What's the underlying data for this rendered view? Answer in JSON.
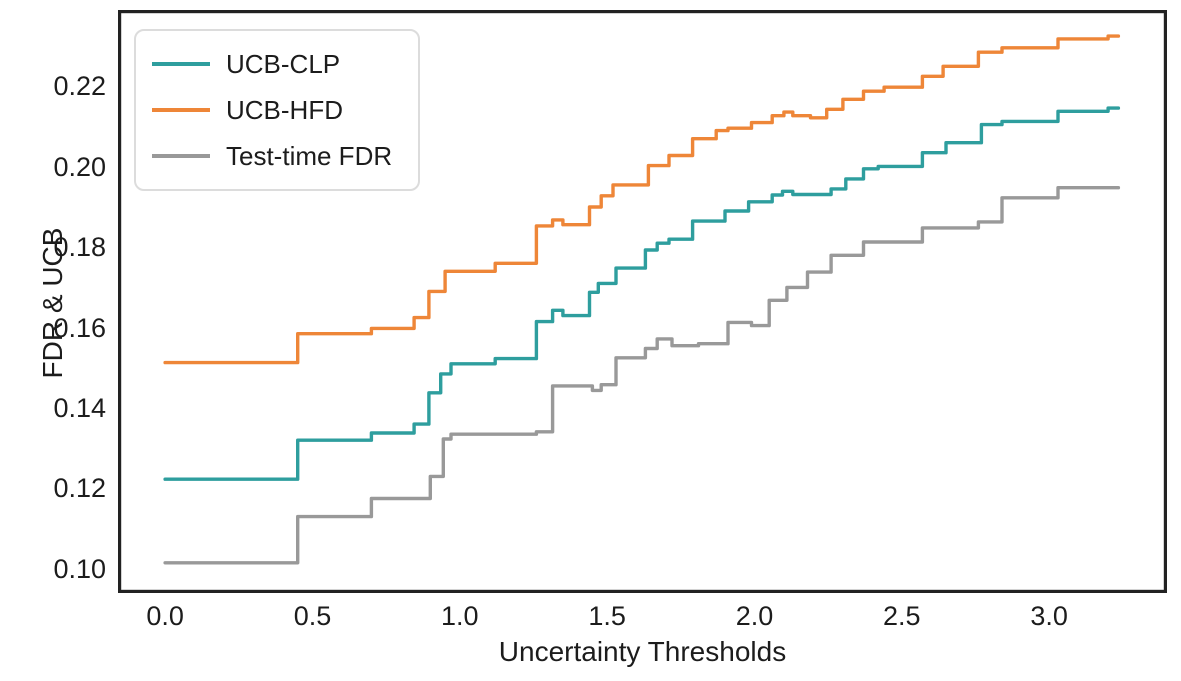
{
  "figure": {
    "background": "#ffffff",
    "text_color": "#1c1c1c",
    "axes_edge_color": "#222222"
  },
  "chart_data": {
    "type": "line",
    "subtype": "step-post",
    "title": "",
    "xlabel": "Uncertainty Thresholds",
    "ylabel": "FDR & UCB",
    "xlim": [
      -0.16,
      3.4
    ],
    "ylim": [
      0.094,
      0.239
    ],
    "grid": false,
    "x_ticks": [
      0.0,
      0.5,
      1.0,
      1.5,
      2.0,
      2.5,
      3.0
    ],
    "x_tick_labels": [
      "0.0",
      "0.5",
      "1.0",
      "1.5",
      "2.0",
      "2.5",
      "3.0"
    ],
    "y_ticks": [
      0.1,
      0.12,
      0.14,
      0.16,
      0.18,
      0.2,
      0.22
    ],
    "y_tick_labels": [
      "0.10",
      "0.12",
      "0.14",
      "0.16",
      "0.18",
      "0.20",
      "0.22"
    ],
    "legend": {
      "position": "upper-left",
      "entries": [
        "UCB-CLP",
        "UCB-HFD",
        "Test-time FDR"
      ]
    },
    "series": [
      {
        "name": "UCB-CLP",
        "color": "#2E9E9E",
        "points": [
          [
            0.0,
            0.1223
          ],
          [
            0.45,
            0.132
          ],
          [
            0.7,
            0.1338
          ],
          [
            0.845,
            0.136
          ],
          [
            0.895,
            0.1438
          ],
          [
            0.935,
            0.1485
          ],
          [
            0.97,
            0.151
          ],
          [
            1.12,
            0.1523
          ],
          [
            1.26,
            0.1615
          ],
          [
            1.315,
            0.1643
          ],
          [
            1.35,
            0.163
          ],
          [
            1.44,
            0.1688
          ],
          [
            1.47,
            0.171
          ],
          [
            1.53,
            0.1748
          ],
          [
            1.63,
            0.1793
          ],
          [
            1.67,
            0.181
          ],
          [
            1.71,
            0.182
          ],
          [
            1.79,
            0.1865
          ],
          [
            1.9,
            0.189
          ],
          [
            1.98,
            0.1913
          ],
          [
            2.06,
            0.193
          ],
          [
            2.095,
            0.1939
          ],
          [
            2.13,
            0.1931
          ],
          [
            2.26,
            0.1945
          ],
          [
            2.31,
            0.197
          ],
          [
            2.37,
            0.1995
          ],
          [
            2.42,
            0.2001
          ],
          [
            2.57,
            0.2035
          ],
          [
            2.65,
            0.206
          ],
          [
            2.77,
            0.2105
          ],
          [
            2.84,
            0.2113
          ],
          [
            3.03,
            0.2138
          ],
          [
            3.2,
            0.2146
          ],
          [
            3.235,
            0.2146
          ]
        ]
      },
      {
        "name": "UCB-HFD",
        "color": "#EE8638",
        "points": [
          [
            0.0,
            0.1513
          ],
          [
            0.45,
            0.1585
          ],
          [
            0.7,
            0.1598
          ],
          [
            0.845,
            0.1625
          ],
          [
            0.895,
            0.169
          ],
          [
            0.95,
            0.174
          ],
          [
            1.12,
            0.176
          ],
          [
            1.26,
            0.1853
          ],
          [
            1.315,
            0.1868
          ],
          [
            1.35,
            0.1856
          ],
          [
            1.44,
            0.19
          ],
          [
            1.48,
            0.1928
          ],
          [
            1.52,
            0.1955
          ],
          [
            1.64,
            0.2003
          ],
          [
            1.71,
            0.2028
          ],
          [
            1.79,
            0.207
          ],
          [
            1.87,
            0.209
          ],
          [
            1.91,
            0.2096
          ],
          [
            1.99,
            0.211
          ],
          [
            2.06,
            0.2127
          ],
          [
            2.1,
            0.2136
          ],
          [
            2.13,
            0.2127
          ],
          [
            2.19,
            0.2122
          ],
          [
            2.245,
            0.2143
          ],
          [
            2.3,
            0.2168
          ],
          [
            2.37,
            0.2188
          ],
          [
            2.44,
            0.2198
          ],
          [
            2.57,
            0.2225
          ],
          [
            2.64,
            0.225
          ],
          [
            2.76,
            0.2285
          ],
          [
            2.84,
            0.2296
          ],
          [
            3.03,
            0.2318
          ],
          [
            3.2,
            0.2325
          ],
          [
            3.235,
            0.2325
          ]
        ]
      },
      {
        "name": "Test-time FDR",
        "color": "#999999",
        "points": [
          [
            0.0,
            0.1015
          ],
          [
            0.45,
            0.113
          ],
          [
            0.7,
            0.1175
          ],
          [
            0.9,
            0.123
          ],
          [
            0.944,
            0.1323
          ],
          [
            0.97,
            0.1335
          ],
          [
            1.26,
            0.1341
          ],
          [
            1.315,
            0.1455
          ],
          [
            1.45,
            0.1444
          ],
          [
            1.48,
            0.1458
          ],
          [
            1.53,
            0.1525
          ],
          [
            1.63,
            0.1548
          ],
          [
            1.67,
            0.1572
          ],
          [
            1.72,
            0.1555
          ],
          [
            1.81,
            0.156
          ],
          [
            1.91,
            0.1613
          ],
          [
            1.99,
            0.1605
          ],
          [
            2.05,
            0.1668
          ],
          [
            2.11,
            0.17
          ],
          [
            2.18,
            0.1738
          ],
          [
            2.26,
            0.178
          ],
          [
            2.37,
            0.1813
          ],
          [
            2.57,
            0.1848
          ],
          [
            2.76,
            0.1863
          ],
          [
            2.84,
            0.1923
          ],
          [
            3.03,
            0.1948
          ],
          [
            3.235,
            0.1948
          ]
        ]
      }
    ]
  }
}
